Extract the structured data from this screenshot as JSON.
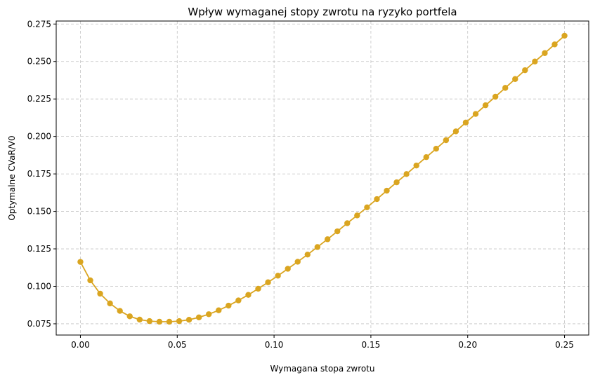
{
  "chart_data": {
    "type": "line",
    "title": "Wpływ wymaganej stopy zwrotu na ryzyko portfela",
    "xlabel": "Wymagana stopa zwrotu",
    "ylabel": "Optymalne CVaR/V0",
    "xlim": [
      -0.0125,
      0.2625
    ],
    "ylim": [
      0.0675,
      0.277
    ],
    "xticks": [
      0.0,
      0.05,
      0.1,
      0.15,
      0.2,
      0.25
    ],
    "xtick_labels": [
      "0.00",
      "0.05",
      "0.10",
      "0.15",
      "0.20",
      "0.25"
    ],
    "yticks": [
      0.075,
      0.1,
      0.125,
      0.15,
      0.175,
      0.2,
      0.225,
      0.25,
      0.275
    ],
    "ytick_labels": [
      "0.075",
      "0.100",
      "0.125",
      "0.150",
      "0.175",
      "0.200",
      "0.225",
      "0.250",
      "0.275"
    ],
    "grid": true,
    "marker": "circle",
    "color": "#DAA520",
    "series": [
      {
        "x": [
          0.0,
          0.0051,
          0.0102,
          0.0153,
          0.0204,
          0.0255,
          0.0306,
          0.0357,
          0.0408,
          0.0459,
          0.051,
          0.0561,
          0.0612,
          0.0663,
          0.0714,
          0.0765,
          0.0816,
          0.0867,
          0.0918,
          0.0969,
          0.102,
          0.1071,
          0.1122,
          0.1173,
          0.1224,
          0.1276,
          0.1327,
          0.1378,
          0.1429,
          0.148,
          0.1531,
          0.1582,
          0.1633,
          0.1684,
          0.1735,
          0.1786,
          0.1837,
          0.1888,
          0.1939,
          0.199,
          0.2041,
          0.2092,
          0.2143,
          0.2194,
          0.2245,
          0.2296,
          0.2347,
          0.2398,
          0.2449,
          0.25
        ],
        "values": [
          0.1163,
          0.104,
          0.0951,
          0.0886,
          0.0836,
          0.08,
          0.0778,
          0.0768,
          0.0764,
          0.0764,
          0.0768,
          0.0777,
          0.0793,
          0.0814,
          0.084,
          0.0871,
          0.0906,
          0.0943,
          0.0984,
          0.1027,
          0.1071,
          0.1117,
          0.1164,
          0.1212,
          0.1262,
          0.1314,
          0.1367,
          0.1421,
          0.1473,
          0.1527,
          0.1582,
          0.1638,
          0.1694,
          0.1749,
          0.1806,
          0.1862,
          0.1918,
          0.1975,
          0.2034,
          0.2093,
          0.215,
          0.2208,
          0.2265,
          0.2324,
          0.2383,
          0.2442,
          0.25,
          0.2556,
          0.2614,
          0.2672
        ]
      }
    ]
  }
}
